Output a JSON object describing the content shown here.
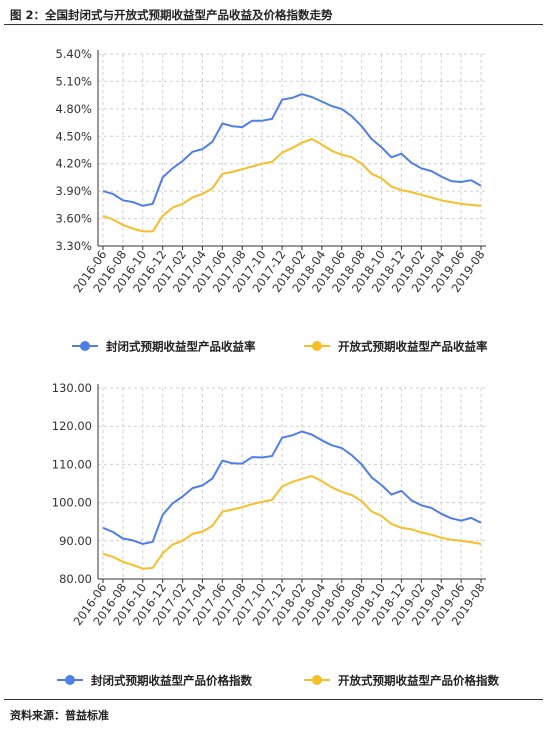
{
  "figure_title": "图 2：全国封闭式与开放式预期收益型产品收益及价格指数走势",
  "source": "资料来源：普益标准",
  "colors": {
    "series1": "#4f7fe6",
    "series2": "#f7be2a",
    "grid": "#cfcfcf",
    "axis": "#333333"
  },
  "x_labels": [
    "2016-06",
    "2016-08",
    "2016-10",
    "2016-12",
    "2017-02",
    "2017-04",
    "2017-06",
    "2017-08",
    "2017-10",
    "2017-12",
    "2018-02",
    "2018-04",
    "2018-06",
    "2018-08",
    "2018-10",
    "2018-12",
    "2019-02",
    "2019-04",
    "2019-06",
    "2019-08"
  ],
  "chart_data": [
    {
      "type": "line",
      "x": [
        "2016-06",
        "2016-07",
        "2016-08",
        "2016-09",
        "2016-10",
        "2016-11",
        "2016-12",
        "2017-01",
        "2017-02",
        "2017-03",
        "2017-04",
        "2017-05",
        "2017-06",
        "2017-07",
        "2017-08",
        "2017-09",
        "2017-10",
        "2017-11",
        "2017-12",
        "2018-01",
        "2018-02",
        "2018-03",
        "2018-04",
        "2018-05",
        "2018-06",
        "2018-07",
        "2018-08",
        "2018-09",
        "2018-10",
        "2018-11",
        "2018-12",
        "2019-01",
        "2019-02",
        "2019-03",
        "2019-04",
        "2019-05",
        "2019-06",
        "2019-07",
        "2019-08"
      ],
      "yticks": [
        "5.40%",
        "5.10%",
        "4.80%",
        "4.50%",
        "4.20%",
        "3.90%",
        "3.60%",
        "3.30%"
      ],
      "ylim": [
        3.3,
        5.4
      ],
      "grid": true,
      "legend_position": "bottom",
      "series": [
        {
          "name": "封闭式预期收益型产品收益率",
          "values": [
            3.9,
            3.87,
            3.8,
            3.78,
            3.74,
            3.76,
            4.05,
            4.15,
            4.23,
            4.33,
            4.36,
            4.44,
            4.64,
            4.61,
            4.6,
            4.67,
            4.67,
            4.69,
            4.9,
            4.92,
            4.96,
            4.93,
            4.88,
            4.83,
            4.8,
            4.72,
            4.61,
            4.47,
            4.38,
            4.27,
            4.31,
            4.21,
            4.15,
            4.12,
            4.06,
            4.01,
            4.0,
            4.02,
            3.96
          ]
        },
        {
          "name": "开放式预期收益型产品收益率",
          "values": [
            3.63,
            3.59,
            3.53,
            3.49,
            3.46,
            3.46,
            3.63,
            3.72,
            3.76,
            3.83,
            3.87,
            3.93,
            4.09,
            4.11,
            4.14,
            4.17,
            4.2,
            4.22,
            4.32,
            4.37,
            4.43,
            4.47,
            4.41,
            4.34,
            4.3,
            4.27,
            4.2,
            4.09,
            4.04,
            3.95,
            3.91,
            3.89,
            3.86,
            3.83,
            3.8,
            3.78,
            3.76,
            3.75,
            3.74
          ]
        }
      ]
    },
    {
      "type": "line",
      "x": [
        "2016-06",
        "2016-07",
        "2016-08",
        "2016-09",
        "2016-10",
        "2016-11",
        "2016-12",
        "2017-01",
        "2017-02",
        "2017-03",
        "2017-04",
        "2017-05",
        "2017-06",
        "2017-07",
        "2017-08",
        "2017-09",
        "2017-10",
        "2017-11",
        "2017-12",
        "2018-01",
        "2018-02",
        "2018-03",
        "2018-04",
        "2018-05",
        "2018-06",
        "2018-07",
        "2018-08",
        "2018-09",
        "2018-10",
        "2018-11",
        "2018-12",
        "2019-01",
        "2019-02",
        "2019-03",
        "2019-04",
        "2019-05",
        "2019-06",
        "2019-07",
        "2019-08"
      ],
      "yticks": [
        "130.00",
        "120.00",
        "110.00",
        "100.00",
        "90.00",
        "80.00"
      ],
      "ylim": [
        80,
        130
      ],
      "grid": true,
      "legend_position": "bottom",
      "series": [
        {
          "name": "封闭式预期收益型产品价格指数",
          "values": [
            93.4,
            92.3,
            90.6,
            90.1,
            89.2,
            89.7,
            96.8,
            99.8,
            101.6,
            103.8,
            104.5,
            106.3,
            111.0,
            110.3,
            110.2,
            111.9,
            111.8,
            112.2,
            117.0,
            117.6,
            118.6,
            117.8,
            116.3,
            115.0,
            114.3,
            112.4,
            110.0,
            106.6,
            104.6,
            102.1,
            103.1,
            100.6,
            99.3,
            98.6,
            97.1,
            95.9,
            95.3,
            96.0,
            94.7
          ]
        },
        {
          "name": "开放式预期收益型产品价格指数",
          "values": [
            86.6,
            85.8,
            84.5,
            83.7,
            82.7,
            82.9,
            86.7,
            89.0,
            90.0,
            91.8,
            92.4,
            93.9,
            97.6,
            98.2,
            98.8,
            99.6,
            100.2,
            100.7,
            104.2,
            105.4,
            106.2,
            107.0,
            105.6,
            104.0,
            102.8,
            102.0,
            100.4,
            97.7,
            96.5,
            94.4,
            93.4,
            93.0,
            92.2,
            91.6,
            90.8,
            90.3,
            90.0,
            89.6,
            89.2
          ]
        }
      ]
    }
  ]
}
